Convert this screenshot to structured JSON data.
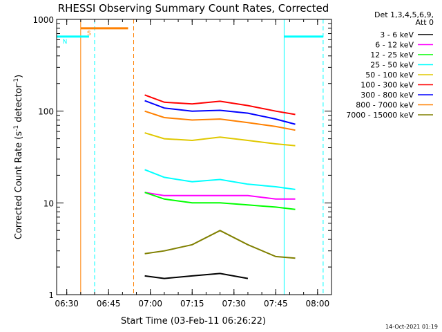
{
  "chart_data": {
    "type": "line",
    "title": "RHESSI Observing Summary Count Rates, Corrected",
    "xlabel": "Start Time (03-Feb-11 06:26:22)",
    "ylabel_main": "Corrected Count Rate (s",
    "ylabel_sup1": "-1",
    "ylabel_mid": " detector",
    "ylabel_sup2": "-1",
    "ylabel_end": ")",
    "yscale": "log",
    "ylim": [
      1,
      1000
    ],
    "xlim": [
      "06:26:22",
      "08:05:00"
    ],
    "x_ticks": [
      "06:30",
      "06:45",
      "07:00",
      "07:15",
      "07:30",
      "07:45",
      "08:00"
    ],
    "y_ticks": [
      "1",
      "10",
      "100",
      "1000"
    ],
    "legend_position": "right",
    "legend_header": [
      "Det 1,3,4,5,6,9,",
      "Att 0"
    ],
    "series": [
      {
        "name": "3 - 6 keV",
        "color": "#000000",
        "x": [
          "06:58",
          "07:05",
          "07:15",
          "07:25",
          "07:35",
          "07:45",
          "07:52"
        ],
        "values": [
          1.6,
          1.5,
          1.6,
          1.7,
          1.5,
          null,
          null
        ]
      },
      {
        "name": "6 - 12 keV",
        "color": "#ff00ff",
        "x": [
          "06:58",
          "07:05",
          "07:15",
          "07:25",
          "07:35",
          "07:45",
          "07:52"
        ],
        "values": [
          13,
          12,
          12,
          12,
          12,
          11,
          11
        ]
      },
      {
        "name": "12 - 25 keV",
        "color": "#00ff00",
        "x": [
          "06:58",
          "07:05",
          "07:15",
          "07:25",
          "07:35",
          "07:45",
          "07:52"
        ],
        "values": [
          13,
          11,
          10,
          10,
          9.5,
          9,
          8.5
        ]
      },
      {
        "name": "25 - 50 keV",
        "color": "#00ffff",
        "x": [
          "06:58",
          "07:05",
          "07:15",
          "07:25",
          "07:35",
          "07:45",
          "07:52"
        ],
        "values": [
          23,
          19,
          17,
          18,
          16,
          15,
          14
        ]
      },
      {
        "name": "50 - 100 keV",
        "color": "#e0c800",
        "x": [
          "06:58",
          "07:05",
          "07:15",
          "07:25",
          "07:35",
          "07:45",
          "07:52"
        ],
        "values": [
          58,
          50,
          48,
          52,
          48,
          44,
          42
        ]
      },
      {
        "name": "100 - 300 keV",
        "color": "#ff0000",
        "x": [
          "06:58",
          "07:05",
          "07:15",
          "07:25",
          "07:35",
          "07:45",
          "07:52"
        ],
        "values": [
          150,
          125,
          120,
          128,
          115,
          100,
          92
        ]
      },
      {
        "name": "300 - 800 keV",
        "color": "#0000ff",
        "x": [
          "06:58",
          "07:05",
          "07:15",
          "07:25",
          "07:35",
          "07:45",
          "07:52"
        ],
        "values": [
          130,
          108,
          100,
          102,
          95,
          82,
          72
        ]
      },
      {
        "name": "800 - 7000 keV",
        "color": "#ff8000",
        "x": [
          "06:58",
          "07:05",
          "07:15",
          "07:25",
          "07:35",
          "07:45",
          "07:52"
        ],
        "values": [
          100,
          85,
          80,
          82,
          75,
          68,
          62
        ]
      },
      {
        "name": "7000 - 15000 keV",
        "color": "#808000",
        "x": [
          "06:58",
          "07:05",
          "07:15",
          "07:25",
          "07:35",
          "07:45",
          "07:52"
        ],
        "values": [
          2.8,
          3.0,
          3.5,
          5.0,
          3.5,
          2.6,
          2.5
        ]
      }
    ],
    "flag_intervals": [
      {
        "label": "S",
        "color": "#ff8000",
        "start": "06:35",
        "end": "06:52",
        "level": 800
      },
      {
        "label": "N",
        "color": "#00ffff",
        "start": "06:26:22",
        "end": "06:38",
        "level": 650
      },
      {
        "label": "",
        "color": "#00ffff",
        "start": "07:48",
        "end": "08:02",
        "level": 650
      }
    ],
    "vertical_markers": [
      {
        "time": "06:26:22",
        "color": "#00ffff",
        "style": "solid"
      },
      {
        "time": "06:35",
        "color": "#ff8000",
        "style": "solid"
      },
      {
        "time": "06:40",
        "color": "#00ffff",
        "style": "dashed"
      },
      {
        "time": "06:54",
        "color": "#ff8000",
        "style": "dashed"
      },
      {
        "time": "07:48",
        "color": "#00ffff",
        "style": "solid"
      },
      {
        "time": "08:02",
        "color": "#00ffff",
        "style": "dashed"
      }
    ]
  },
  "footer": {
    "timestamp": "14-Oct-2021 01:19"
  }
}
